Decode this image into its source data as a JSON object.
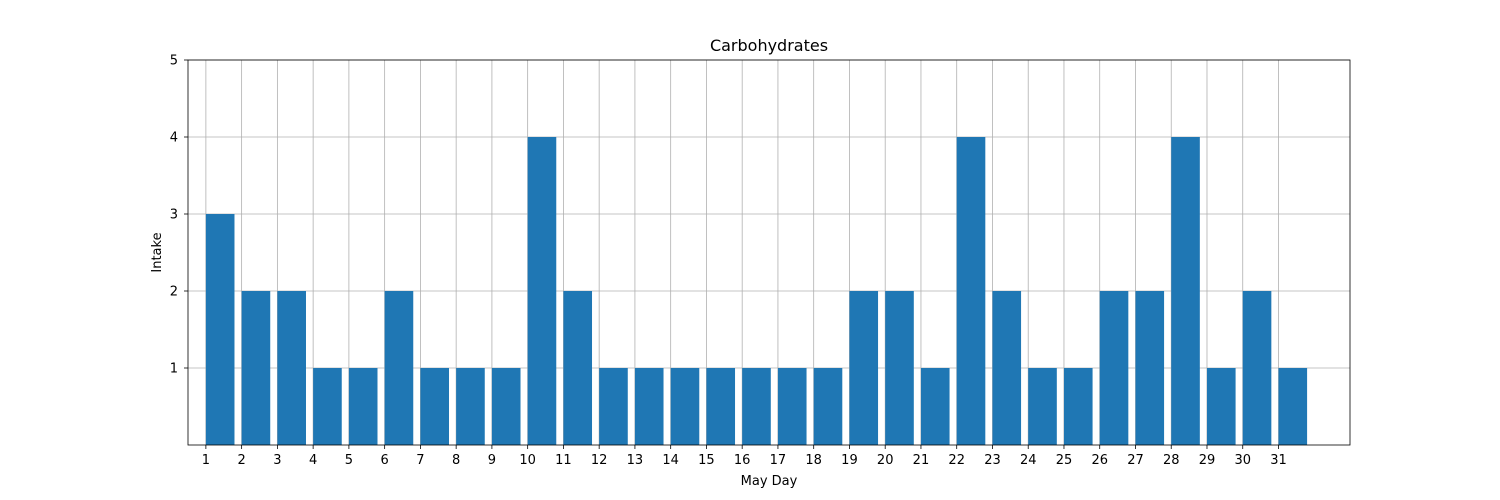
{
  "chart_data": {
    "type": "bar",
    "title": "Carbohydrates",
    "xlabel": "May Day",
    "ylabel": "Intake",
    "categories": [
      "1",
      "2",
      "3",
      "4",
      "5",
      "6",
      "7",
      "8",
      "9",
      "10",
      "11",
      "12",
      "13",
      "14",
      "15",
      "16",
      "17",
      "18",
      "19",
      "20",
      "21",
      "22",
      "23",
      "24",
      "25",
      "26",
      "27",
      "28",
      "29",
      "30",
      "31"
    ],
    "values": [
      3,
      2,
      2,
      1,
      1,
      2,
      1,
      1,
      1,
      4,
      2,
      1,
      1,
      1,
      1,
      1,
      1,
      1,
      2,
      2,
      1,
      4,
      2,
      1,
      1,
      2,
      2,
      4,
      1,
      2,
      1
    ],
    "yticks": [
      1,
      2,
      3,
      4,
      5
    ],
    "ylim": [
      0,
      5
    ],
    "xlim": [
      -0.5,
      32
    ],
    "grid": true,
    "bar_color": "#1f77b4"
  }
}
